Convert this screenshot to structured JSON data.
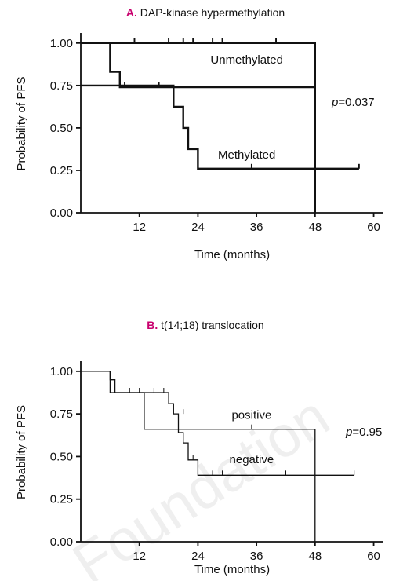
{
  "chart_data": [
    {
      "type": "line",
      "panel_letter": "A.",
      "title": "DAP-kinase hypermethylation",
      "xlabel": "Time (months)",
      "ylabel": "Probability of PFS",
      "xlim": [
        0,
        62
      ],
      "ylim": [
        0,
        1.05
      ],
      "xticks": [
        "12",
        "24",
        "36",
        "48",
        "60"
      ],
      "yticks": [
        "0.00",
        "0.25",
        "0.50",
        "0.75",
        "1.00"
      ],
      "p_value_label": "p",
      "p_value": "=0.037",
      "letter_color": "#c8006e",
      "line_width": "thick",
      "series": [
        {
          "name": "Unmethylated",
          "steps": [
            [
              0,
              1.0
            ],
            [
              48,
              1.0
            ],
            [
              48,
              0.0
            ]
          ],
          "censored": [
            [
              11,
              1.0
            ],
            [
              18,
              1.0
            ],
            [
              21,
              1.0
            ],
            [
              23,
              1.0
            ],
            [
              27,
              1.0
            ],
            [
              29,
              1.0
            ],
            [
              40,
              1.0
            ]
          ]
        },
        {
          "name": "Methylated",
          "steps": [
            [
              0,
              0.75
            ],
            [
              19,
              0.75
            ],
            [
              19,
              0.625
            ],
            [
              21,
              0.625
            ],
            [
              21,
              0.5
            ],
            [
              22,
              0.5
            ],
            [
              22,
              0.375
            ],
            [
              24,
              0.375
            ],
            [
              24,
              0.26
            ],
            [
              57,
              0.26
            ]
          ],
          "censored": [
            [
              35,
              0.26
            ],
            [
              57,
              0.26
            ]
          ]
        },
        {
          "name": "",
          "steps": [
            [
              6,
              1.0
            ],
            [
              6,
              0.83
            ],
            [
              8,
              0.83
            ],
            [
              8,
              0.74
            ],
            [
              48,
              0.74
            ]
          ],
          "censored": [
            [
              9,
              0.74
            ],
            [
              16,
              0.74
            ]
          ]
        }
      ],
      "labels": [
        {
          "text": "Unmethylated",
          "x": 34,
          "y": 0.88
        },
        {
          "text": "Methylated",
          "x": 34,
          "y": 0.32
        }
      ]
    },
    {
      "type": "line",
      "panel_letter": "B.",
      "title": "t(14;18) translocation",
      "xlabel": "Time (months)",
      "ylabel": "Probability of PFS",
      "xlim": [
        0,
        62
      ],
      "ylim": [
        0,
        1.05
      ],
      "xticks": [
        "12",
        "24",
        "36",
        "48",
        "60"
      ],
      "yticks": [
        "0.00",
        "0.25",
        "0.50",
        "0.75",
        "1.00"
      ],
      "p_value_label": "p",
      "p_value": "=0.95",
      "letter_color": "#c8006e",
      "line_width": "thin",
      "series": [
        {
          "name": "positive",
          "steps": [
            [
              0,
              1.0
            ],
            [
              6,
              1.0
            ],
            [
              6,
              0.95
            ],
            [
              7,
              0.95
            ],
            [
              7,
              0.875
            ],
            [
              13,
              0.875
            ],
            [
              13,
              0.66
            ],
            [
              48,
              0.66
            ],
            [
              48,
              0.0
            ]
          ],
          "censored": [
            [
              35,
              0.66
            ]
          ]
        },
        {
          "name": "negative",
          "steps": [
            [
              0,
              1.0
            ],
            [
              6,
              1.0
            ],
            [
              6,
              0.875
            ],
            [
              18,
              0.875
            ],
            [
              18,
              0.81
            ],
            [
              19,
              0.81
            ],
            [
              19,
              0.75
            ],
            [
              20,
              0.75
            ],
            [
              20,
              0.64
            ],
            [
              21,
              0.64
            ],
            [
              21,
              0.58
            ],
            [
              22,
              0.58
            ],
            [
              22,
              0.48
            ],
            [
              24,
              0.48
            ],
            [
              24,
              0.39
            ],
            [
              56,
              0.39
            ]
          ],
          "censored": [
            [
              10,
              0.875
            ],
            [
              12,
              0.875
            ],
            [
              15,
              0.875
            ],
            [
              17,
              0.875
            ],
            [
              21,
              0.75
            ],
            [
              23,
              0.48
            ],
            [
              27,
              0.39
            ],
            [
              29,
              0.39
            ],
            [
              42,
              0.39
            ],
            [
              56,
              0.39
            ]
          ]
        }
      ],
      "labels": [
        {
          "text": "positive",
          "x": 35,
          "y": 0.72
        },
        {
          "text": "negative",
          "x": 35,
          "y": 0.46
        }
      ]
    }
  ],
  "watermark": "Foundation"
}
